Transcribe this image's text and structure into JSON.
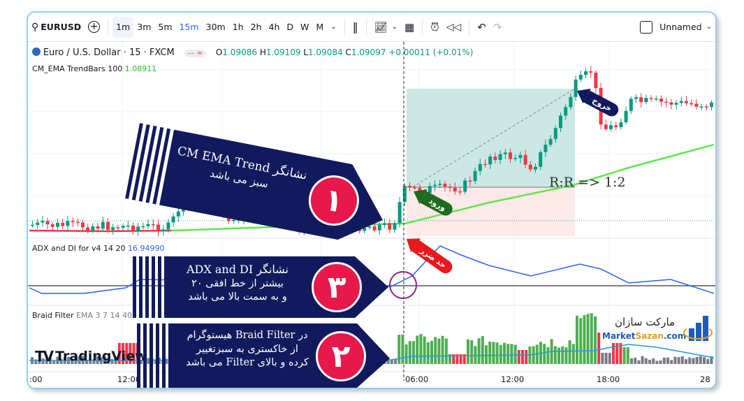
{
  "toolbar": {
    "symbol": "EURUSD",
    "timeframes": [
      "1m",
      "3m",
      "5m",
      "15m",
      "30m",
      "1h",
      "2h",
      "4h",
      "D",
      "W",
      "M"
    ],
    "active_timeframe": "15m",
    "layout_name": "Unnamed",
    "icons": [
      "search-icon",
      "plus-circle-icon",
      "chevron-down-icon",
      "candles-icon",
      "indicators-icon",
      "layout-grid-icon",
      "alert-clock-icon",
      "replay-icon",
      "undo-icon",
      "redo-icon",
      "checkbox-icon"
    ]
  },
  "legend": {
    "title": "Euro / U.S. Dollar · 15 · FXCM",
    "ohlc": {
      "o_label": "O",
      "o": "1.09086",
      "h_label": "H",
      "h": "1.09109",
      "l_label": "L",
      "l": "1.09084",
      "c_label": "C",
      "c": "1.09097",
      "change": "+0.00011 (+0.01%)"
    },
    "indicator": "CM_EMA TrendBars 100",
    "indicator_value": "1.08911"
  },
  "adx": {
    "label": "ADX and DI for v4 14 20",
    "value": "16.94990"
  },
  "braid": {
    "label": "Braid Filter",
    "params": "EMA 3 7 14 40"
  },
  "time_axis": [
    ":00",
    "12:00",
    "06:00",
    "12:00",
    "18:00",
    "28"
  ],
  "annotations": {
    "rr": "R:R => 1:2",
    "entry": "ورود",
    "exit": "خروج",
    "stop": "حد ضرر",
    "banner1": {
      "number": "۱",
      "line1": "نشانگر CM EMA Trend",
      "line2": "سبز می باشد"
    },
    "banner3": {
      "number": "۳",
      "line1": "نشانگر ADX and DI",
      "line2": "بیشتر از خط افقی ۲۰",
      "line3": "و به سمت بالا می باشد"
    },
    "banner2": {
      "number": "۲",
      "line1": "در Braid Filter  هیستوگرام",
      "line2": "از خاکستری به سبزتغییر",
      "line3": "کرده و بالای Filter می باشد"
    }
  },
  "watermark": "TradingView",
  "logo": {
    "fa": "مارکت سازان",
    "en_a": "Market",
    "en_b": "Sazan",
    "en_c": ".com"
  },
  "colors": {
    "up": "#089981",
    "down": "#f23645",
    "ema": "#5ee84c",
    "adx": "#2962ff",
    "navy": "#111a5c",
    "badge": "#e8184a",
    "accent": "#2962ff"
  }
}
